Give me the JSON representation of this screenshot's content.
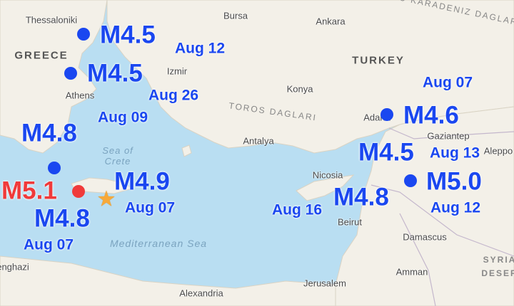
{
  "colors": {
    "sea": "#b9def2",
    "land": "#f3f0e8",
    "quake_blue": "#1a47f0",
    "quake_red": "#f03a3a",
    "star": "#f7a93a"
  },
  "places": {
    "thessaloniki": "Thessaloniki",
    "bursa": "Bursa",
    "ankara": "Ankara",
    "izmir": "Izmir",
    "athens": "Athens",
    "konya": "Konya",
    "adana": "Adana",
    "gaziantep": "Gaziantep",
    "antalya": "Antalya",
    "aleppo": "Aleppo",
    "nicosia": "Nicosia",
    "beirut": "Beirut",
    "damascus": "Damascus",
    "amman": "Amman",
    "jerusalem": "Jerusalem",
    "alexandria": "Alexandria",
    "benghazi": "enghazi"
  },
  "countries": {
    "greece": "GREECE",
    "turkey": "TURKEY",
    "syrian_desert_1": "SYRIA",
    "syrian_desert_2": "DESER"
  },
  "seas": {
    "sea_of_crete_1": "Sea of",
    "sea_of_crete_2": "Crete",
    "mediterranean": "Mediterranean Sea"
  },
  "ranges": {
    "toros": "TOROS DAGLARI",
    "dogu": "DOGU KARADENIZ DAGLARI"
  },
  "earthquakes": [
    {
      "mag": "M4.5",
      "date": "Aug 12",
      "marker": "dot"
    },
    {
      "mag": "M4.5",
      "date": "Aug 26",
      "marker": "dot"
    },
    {
      "mag": "M4.8",
      "date": "Aug 09",
      "marker": "dot"
    },
    {
      "mag": "M5.1",
      "date": "",
      "marker": "dot-red"
    },
    {
      "mag": "M4.9",
      "date": "Aug 07",
      "marker": "star"
    },
    {
      "mag": "M4.8",
      "date": "Aug 07",
      "marker": "none"
    },
    {
      "mag": "M4.6",
      "date": "Aug 07",
      "marker": "dot"
    },
    {
      "mag": "M4.5",
      "date": "Aug 13",
      "marker": "none"
    },
    {
      "mag": "M5.0",
      "date": "Aug 12",
      "marker": "dot"
    },
    {
      "mag": "M4.8",
      "date": "Aug 16",
      "marker": "none"
    }
  ]
}
